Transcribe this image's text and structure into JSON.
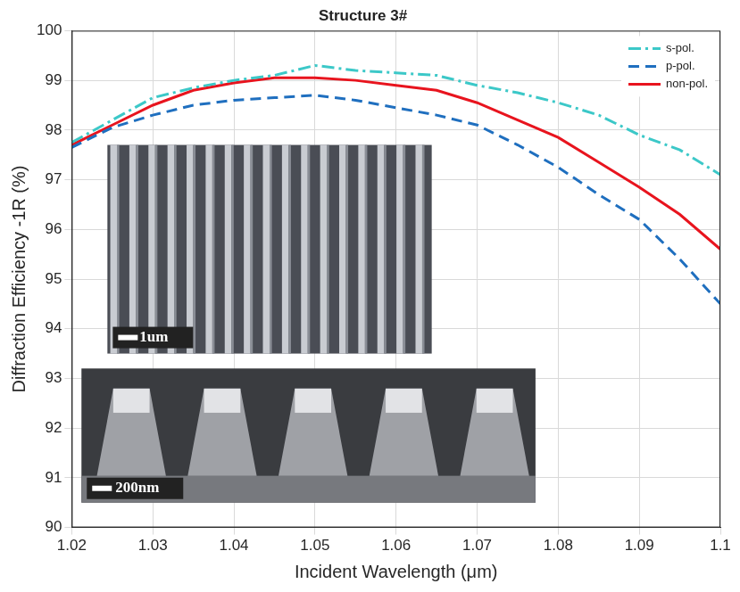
{
  "chart_data": {
    "type": "line",
    "title": "Structure 3#",
    "x_label": "Incident Wavelength (μm)",
    "y_label": "Diffraction Efficiency -1R (%)",
    "x": [
      1.02,
      1.025,
      1.03,
      1.035,
      1.04,
      1.045,
      1.05,
      1.055,
      1.06,
      1.065,
      1.07,
      1.075,
      1.08,
      1.085,
      1.09,
      1.095,
      1.1
    ],
    "series": [
      {
        "name": "s-pol.",
        "color": "#3cc8c8",
        "line_style": "dashdot",
        "values": [
          97.75,
          98.2,
          98.65,
          98.85,
          99.0,
          99.1,
          99.3,
          99.2,
          99.15,
          99.1,
          98.9,
          98.75,
          98.55,
          98.3,
          97.9,
          97.6,
          97.1
        ]
      },
      {
        "name": "p-pol.",
        "color": "#1f6fbf",
        "line_style": "dashed",
        "values": [
          97.65,
          98.05,
          98.3,
          98.5,
          98.6,
          98.65,
          98.7,
          98.6,
          98.45,
          98.3,
          98.1,
          97.7,
          97.25,
          96.7,
          96.2,
          95.4,
          94.5
        ]
      },
      {
        "name": "non-pol.",
        "color": "#e8141e",
        "line_style": "solid",
        "values": [
          97.7,
          98.1,
          98.5,
          98.8,
          98.95,
          99.05,
          99.05,
          99.0,
          98.9,
          98.8,
          98.55,
          98.2,
          97.85,
          97.35,
          96.85,
          96.3,
          95.6
        ]
      }
    ],
    "xlim": [
      1.02,
      1.1
    ],
    "xticks": [
      1.02,
      1.03,
      1.04,
      1.05,
      1.06,
      1.07,
      1.08,
      1.09,
      1.1
    ],
    "ylim": [
      90,
      100
    ],
    "yticks": [
      90,
      91,
      92,
      93,
      94,
      95,
      96,
      97,
      98,
      99,
      100
    ],
    "grid": true,
    "legend": "upper right",
    "annotations": [
      "1um",
      "200nm"
    ]
  }
}
